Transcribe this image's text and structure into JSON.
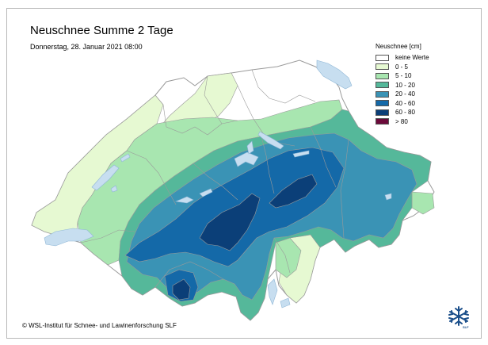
{
  "title": "Neuschnee Summe 2 Tage",
  "subtitle": "Donnerstag, 28. Januar 2021 08:00",
  "legend": {
    "title": "Neuschnee [cm]",
    "items": [
      {
        "label": "keine Werte",
        "color": "#ffffff"
      },
      {
        "label": "0 - 5",
        "color": "#e6f9d2"
      },
      {
        "label": "5 - 10",
        "color": "#a8e6b0"
      },
      {
        "label": "10 - 20",
        "color": "#55b89a"
      },
      {
        "label": "20 - 40",
        "color": "#3a93b5"
      },
      {
        "label": "40 - 60",
        "color": "#1469a8"
      },
      {
        "label": "60 - 80",
        "color": "#0b3f78"
      },
      {
        "label": "> 80",
        "color": "#6b0a3a"
      }
    ]
  },
  "copyright": "© WSL-Institut für Schnee- und Lawinenforschung SLF",
  "colors": {
    "border": "#9a9a9a",
    "lake": "#c7def0",
    "lake_stroke": "#8fb7d6"
  },
  "logo_text": "SLF"
}
